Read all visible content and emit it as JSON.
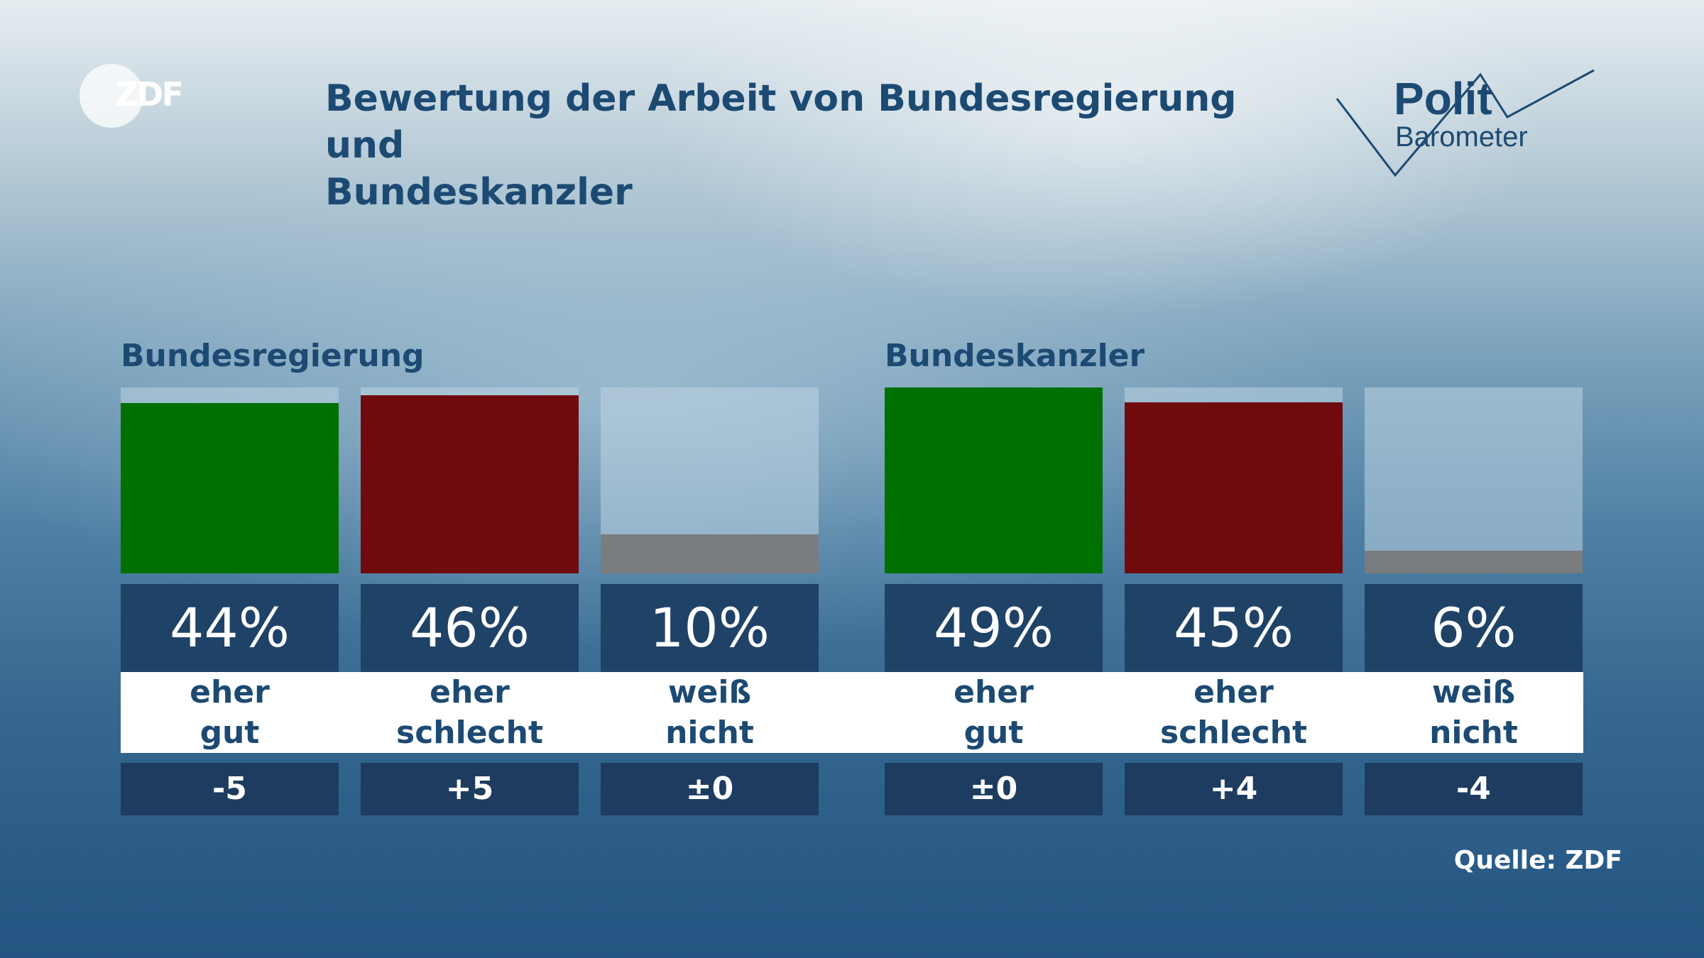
{
  "header": {
    "title_line1": "Bewertung der Arbeit von Bundesregierung und",
    "title_line2": "Bundeskanzler",
    "broadcaster_logo": "ZDF",
    "series_logo_line1": "Polit",
    "series_logo_line2": "Barometer"
  },
  "footer": {
    "source": "Quelle: ZDF"
  },
  "colors": {
    "positive": "#007000",
    "negative": "#6f0b0e",
    "neutral": "#7a7d80",
    "value_box": "#1f4267",
    "change_box": "#1d3c60",
    "title": "#1c4a72"
  },
  "chart_data": [
    {
      "type": "bar",
      "title": "Bundesregierung",
      "ylim": [
        0,
        48
      ],
      "bars": [
        {
          "value": 44,
          "display": "44%",
          "label_line1": "eher",
          "label_line2": "gut",
          "change": "-5",
          "color_key": "positive"
        },
        {
          "value": 46,
          "display": "46%",
          "label_line1": "eher",
          "label_line2": "schlecht",
          "change": "+5",
          "color_key": "negative"
        },
        {
          "value": 10,
          "display": "10%",
          "label_line1": "weiß",
          "label_line2": "nicht",
          "change": "±0",
          "color_key": "neutral"
        }
      ]
    },
    {
      "type": "bar",
      "title": "Bundeskanzler",
      "ylim": [
        0,
        49
      ],
      "bars": [
        {
          "value": 49,
          "display": "49%",
          "label_line1": "eher",
          "label_line2": "gut",
          "change": "±0",
          "color_key": "positive"
        },
        {
          "value": 45,
          "display": "45%",
          "label_line1": "eher",
          "label_line2": "schlecht",
          "change": "+4",
          "color_key": "negative"
        },
        {
          "value": 6,
          "display": "6%",
          "label_line1": "weiß",
          "label_line2": "nicht",
          "change": "-4",
          "color_key": "neutral"
        }
      ]
    }
  ]
}
